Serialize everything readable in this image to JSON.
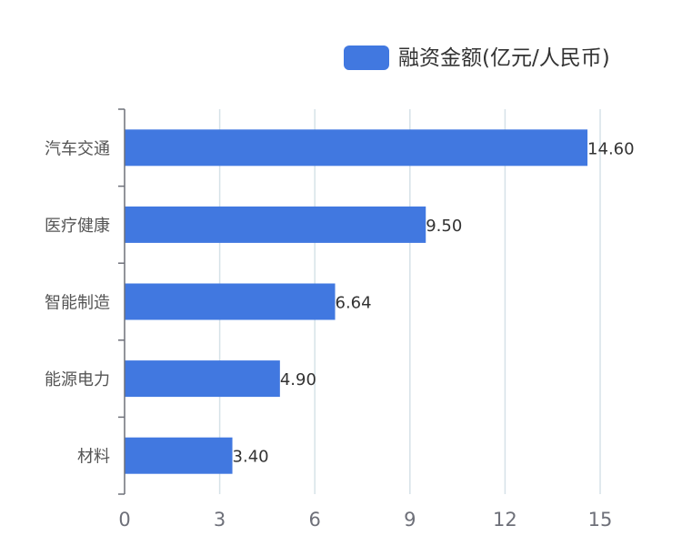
{
  "chart_data": {
    "type": "bar",
    "orientation": "horizontal",
    "categories": [
      "汽车交通",
      "医疗健康",
      "智能制造",
      "能源电力",
      "材料"
    ],
    "series": [
      {
        "name": "融资金额(亿元/人民币)",
        "values": [
          14.6,
          9.5,
          6.64,
          4.9,
          3.4
        ],
        "value_labels": [
          "14.60",
          "9.50",
          "6.64",
          "4.90",
          "3.40"
        ]
      }
    ],
    "xlim": [
      0,
      15
    ],
    "xticks": [
      0,
      3,
      6,
      9,
      12,
      15
    ],
    "grid": true,
    "legend": "top-right"
  },
  "colors": {
    "bar": "#4178e0",
    "grid": "#d6e2e8",
    "axis": "#6e7079"
  }
}
